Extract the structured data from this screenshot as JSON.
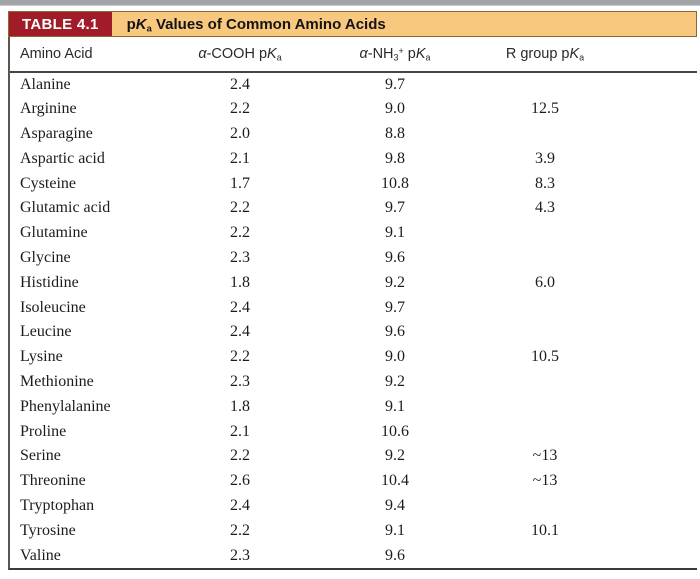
{
  "page": {
    "top_bar_color": "#a2a4a7"
  },
  "table": {
    "badge_label": "TABLE 4.1",
    "title": {
      "pre": "p",
      "K": "K",
      "sub": "a",
      "rest": " Values of Common Amino Acids"
    },
    "colors": {
      "title_bar_bg": "#f8c87e",
      "badge_bg": "#a01c28",
      "rule": "#3d3b38"
    },
    "columns": {
      "amino_acid": "Amino Acid",
      "cooh": {
        "alpha": "α",
        "pre": "-COOH p",
        "K": "K",
        "sub": "a"
      },
      "nh3": {
        "alpha": "α",
        "pre": "-NH",
        "sub3": "3",
        "sup": "+",
        "mid": " p",
        "K": "K",
        "sub": "a"
      },
      "rgroup": {
        "pre": "R group p",
        "K": "K",
        "sub": "a"
      }
    },
    "rows": [
      {
        "name": "Alanine",
        "cooh": "2.4",
        "nh3": "9.7",
        "r": ""
      },
      {
        "name": "Arginine",
        "cooh": "2.2",
        "nh3": "9.0",
        "r": "12.5"
      },
      {
        "name": "Asparagine",
        "cooh": "2.0",
        "nh3": "8.8",
        "r": ""
      },
      {
        "name": "Aspartic acid",
        "cooh": "2.1",
        "nh3": "9.8",
        "r": "3.9"
      },
      {
        "name": "Cysteine",
        "cooh": "1.7",
        "nh3": "10.8",
        "r": "8.3"
      },
      {
        "name": "Glutamic acid",
        "cooh": "2.2",
        "nh3": "9.7",
        "r": "4.3"
      },
      {
        "name": "Glutamine",
        "cooh": "2.2",
        "nh3": "9.1",
        "r": ""
      },
      {
        "name": "Glycine",
        "cooh": "2.3",
        "nh3": "9.6",
        "r": ""
      },
      {
        "name": "Histidine",
        "cooh": "1.8",
        "nh3": "9.2",
        "r": "6.0"
      },
      {
        "name": "Isoleucine",
        "cooh": "2.4",
        "nh3": "9.7",
        "r": ""
      },
      {
        "name": "Leucine",
        "cooh": "2.4",
        "nh3": "9.6",
        "r": ""
      },
      {
        "name": "Lysine",
        "cooh": "2.2",
        "nh3": "9.0",
        "r": "10.5"
      },
      {
        "name": "Methionine",
        "cooh": "2.3",
        "nh3": "9.2",
        "r": ""
      },
      {
        "name": "Phenylalanine",
        "cooh": "1.8",
        "nh3": "9.1",
        "r": ""
      },
      {
        "name": "Proline",
        "cooh": "2.1",
        "nh3": "10.6",
        "r": ""
      },
      {
        "name": "Serine",
        "cooh": "2.2",
        "nh3": "9.2",
        "r": "~13"
      },
      {
        "name": "Threonine",
        "cooh": "2.6",
        "nh3": "10.4",
        "r": "~13"
      },
      {
        "name": "Tryptophan",
        "cooh": "2.4",
        "nh3": "9.4",
        "r": ""
      },
      {
        "name": "Tyrosine",
        "cooh": "2.2",
        "nh3": "9.1",
        "r": "10.1"
      },
      {
        "name": "Valine",
        "cooh": "2.3",
        "nh3": "9.6",
        "r": ""
      }
    ]
  }
}
